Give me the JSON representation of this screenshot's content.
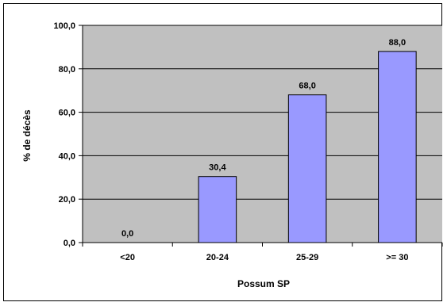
{
  "chart_data": {
    "type": "bar",
    "title": "",
    "xlabel": "Possum SP",
    "ylabel": "% de décès",
    "categories": [
      "<20",
      "20-24",
      "25-29",
      ">= 30"
    ],
    "series": [
      {
        "values": [
          0.0,
          30.4,
          68.0,
          88.0
        ]
      }
    ],
    "data_labels": [
      "0,0",
      "30,4",
      "68,0",
      "88,0"
    ],
    "ylim": [
      0,
      100
    ],
    "y_ticks": [
      0,
      20,
      40,
      60,
      80,
      100
    ],
    "y_tick_labels": [
      "0,0",
      "20,0",
      "40,0",
      "60,0",
      "80,0",
      "100,0"
    ],
    "grid": true,
    "legend": "none",
    "colors": {
      "plot_background": "#c0c0c0",
      "bar_fill": "#9999ff",
      "bar_stroke": "#000000",
      "gridline": "#000000"
    }
  }
}
